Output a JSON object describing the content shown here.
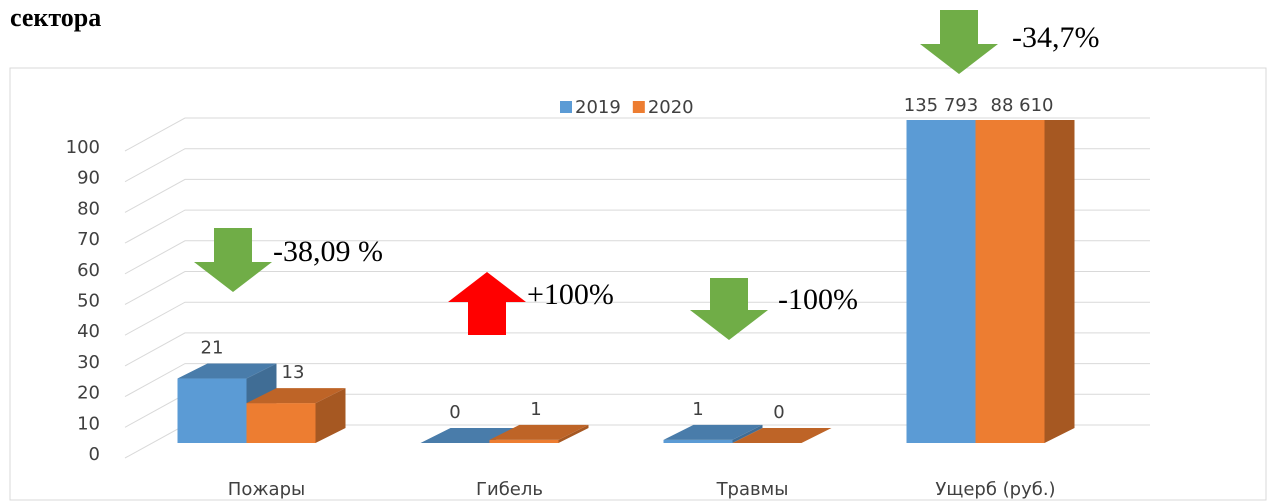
{
  "chart_data": {
    "type": "bar",
    "title": "сектора",
    "categories": [
      "Пожары",
      "Гибель",
      "Травмы",
      "Ущерб (руб.)"
    ],
    "series": [
      {
        "name": "2019",
        "color": "#5b9bd5",
        "values": [
          21,
          0,
          1,
          135793
        ],
        "value_labels": [
          "21",
          "0",
          "1",
          "135 793"
        ]
      },
      {
        "name": "2020",
        "color": "#ed7d31",
        "values": [
          13,
          1,
          0,
          88610
        ],
        "value_labels": [
          "13",
          "1",
          "0",
          "88 610"
        ]
      }
    ],
    "ylim": [
      0,
      100
    ],
    "yticks": [
      0,
      10,
      20,
      30,
      40,
      50,
      60,
      70,
      80,
      90,
      100
    ],
    "grid": true,
    "legend": "top",
    "annotations": [
      "-38,09 %",
      "+100%",
      "-100%",
      "-34,7%"
    ]
  }
}
